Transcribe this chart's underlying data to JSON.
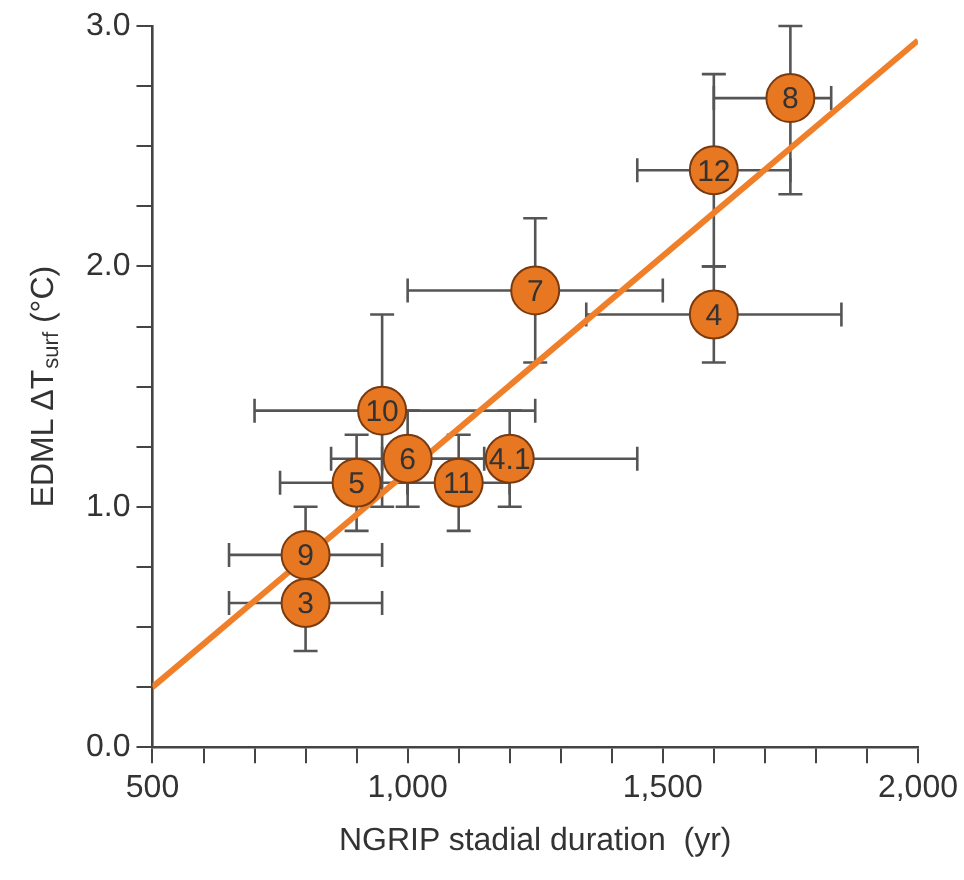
{
  "chart_data": {
    "type": "scatter",
    "xlabel": "NGRIP stadial duration  (yr)",
    "ylabel": "EDML ΔT$_{surf}$ (°C)",
    "xlim": [
      500,
      2000
    ],
    "ylim": [
      0,
      3
    ],
    "xticks": [
      {
        "value": 500,
        "label": "500"
      },
      {
        "value": 600,
        "label": null
      },
      {
        "value": 700,
        "label": null
      },
      {
        "value": 800,
        "label": null
      },
      {
        "value": 900,
        "label": null
      },
      {
        "value": 1000,
        "label": "1,000"
      },
      {
        "value": 1100,
        "label": null
      },
      {
        "value": 1200,
        "label": null
      },
      {
        "value": 1300,
        "label": null
      },
      {
        "value": 1400,
        "label": null
      },
      {
        "value": 1500,
        "label": "1,500"
      },
      {
        "value": 1600,
        "label": null
      },
      {
        "value": 1700,
        "label": null
      },
      {
        "value": 1800,
        "label": null
      },
      {
        "value": 1900,
        "label": null
      },
      {
        "value": 2000,
        "label": "2,000"
      }
    ],
    "yticks": [
      {
        "value": 0,
        "label": "0.0"
      },
      {
        "value": 0.25,
        "label": null
      },
      {
        "value": 0.5,
        "label": null
      },
      {
        "value": 0.75,
        "label": null
      },
      {
        "value": 1,
        "label": "1.0"
      },
      {
        "value": 1.25,
        "label": null
      },
      {
        "value": 1.5,
        "label": null
      },
      {
        "value": 1.75,
        "label": null
      },
      {
        "value": 2,
        "label": "2.0"
      },
      {
        "value": 2.25,
        "label": null
      },
      {
        "value": 2.5,
        "label": null
      },
      {
        "value": 2.75,
        "label": null
      },
      {
        "value": 3,
        "label": "3.0"
      }
    ],
    "annotations": [
      {
        "text": "8",
        "x": 1750,
        "y": 2.7
      },
      {
        "text": "12",
        "x": 1600,
        "y": 2.4
      },
      {
        "text": "7",
        "x": 1250,
        "y": 1.9
      },
      {
        "text": "4",
        "x": 1600,
        "y": 1.8
      },
      {
        "text": "10",
        "x": 950,
        "y": 1.4
      },
      {
        "text": "6",
        "x": 1000,
        "y": 1.2
      },
      {
        "text": "4.1",
        "x": 1200,
        "y": 1.2
      },
      {
        "text": "11",
        "x": 1100,
        "y": 1.1
      },
      {
        "text": "5",
        "x": 900,
        "y": 1.1
      },
      {
        "text": "9",
        "x": 800,
        "y": 0.8
      },
      {
        "text": "3",
        "x": 800,
        "y": 0.6
      }
    ],
    "grid": false,
    "legend": false,
    "marker": "circle",
    "series": [
      {
        "type": "line",
        "color": "#f07f2a",
        "x": [
          500,
          2000
        ],
        "values": [
          0.25,
          2.94
        ],
        "marker": "none",
        "line_style": "solid"
      },
      {
        "color": "#e87722",
        "x": [
          1750,
          1600,
          1250,
          1600,
          950,
          1000,
          1200,
          1100,
          900,
          800,
          800
        ],
        "values": [
          2.7,
          2.4,
          1.9,
          1.8,
          1.4,
          1.2,
          1.2,
          1.1,
          1.1,
          0.8,
          0.6
        ],
        "errors": [
          [
            2.3,
            3.0
          ],
          0.4,
          [
            1.6,
            2.2
          ],
          0.2,
          0.4,
          0.2,
          0.2,
          0.2,
          0.2,
          0.2,
          0.2
        ],
        "xerrors": [
          [
            1600,
            1830
          ],
          [
            1450,
            1750
          ],
          [
            1000,
            1500
          ],
          [
            1350,
            1850
          ],
          [
            700,
            1250
          ],
          [
            850,
            1150
          ],
          [
            950,
            1450
          ],
          [
            1000,
            1200
          ],
          [
            750,
            1000
          ],
          [
            650,
            950
          ],
          [
            650,
            950
          ]
        ]
      }
    ]
  }
}
